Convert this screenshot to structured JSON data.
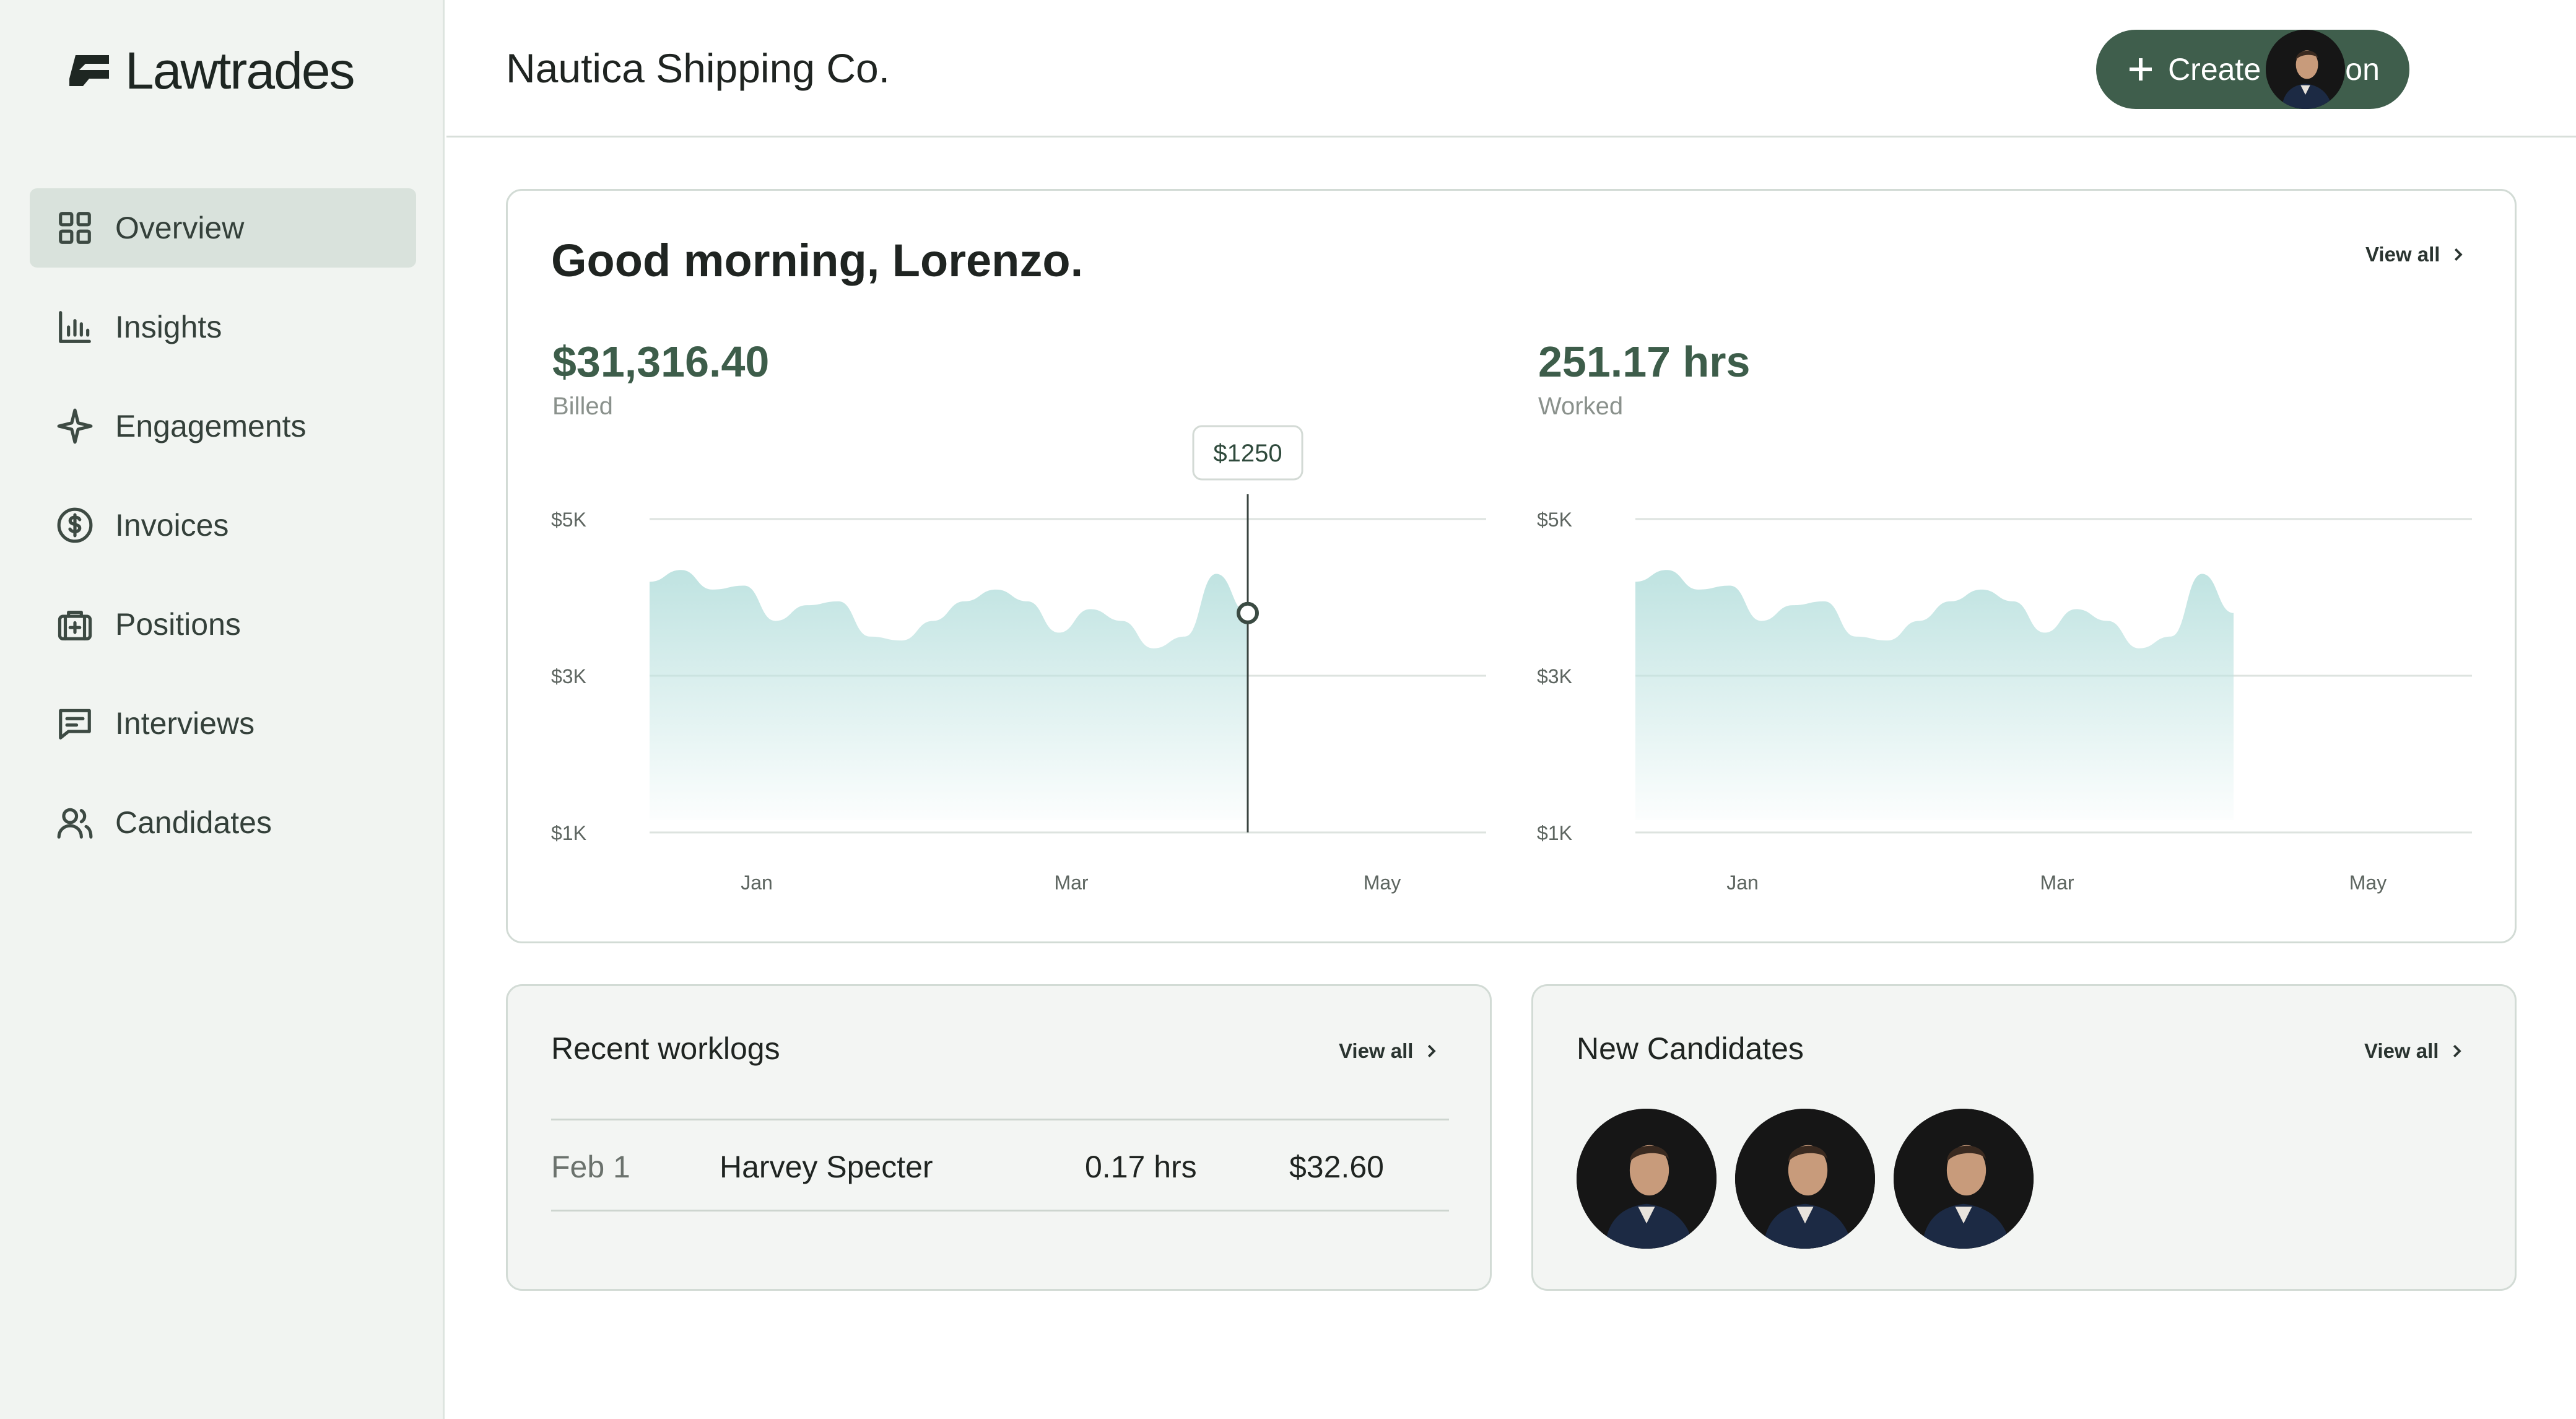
{
  "brand": {
    "name": "Lawtrades"
  },
  "sidebar": {
    "items": [
      {
        "label": "Overview",
        "icon": "grid-icon",
        "active": true
      },
      {
        "label": "Insights",
        "icon": "bar-chart-icon"
      },
      {
        "label": "Engagements",
        "icon": "sparkle-icon"
      },
      {
        "label": "Invoices",
        "icon": "dollar-circle-icon"
      },
      {
        "label": "Positions",
        "icon": "briefcase-icon"
      },
      {
        "label": "Interviews",
        "icon": "message-icon"
      },
      {
        "label": "Candidates",
        "icon": "users-icon"
      }
    ]
  },
  "header": {
    "company": "Nautica Shipping Co.",
    "create_label": "Create Position"
  },
  "overview": {
    "greeting": "Good morning, Lorenzo.",
    "view_all": "View all",
    "billed": {
      "value": "$31,316.40",
      "label": "Billed"
    },
    "worked": {
      "value": "251.17 hrs",
      "label": "Worked"
    },
    "tooltip": "$1250"
  },
  "chart_data": [
    {
      "type": "area",
      "title": "",
      "y_ticks": [
        "$5K",
        "$3K",
        "$1K"
      ],
      "x_ticks": [
        "Jan",
        "Mar",
        "May"
      ],
      "ylim": [
        1000,
        5000
      ],
      "y": [
        4200,
        4350,
        4100,
        4150,
        3700,
        3900,
        3950,
        3500,
        3450,
        3700,
        3950,
        4100,
        3950,
        3550,
        3850,
        3700,
        3350,
        3500,
        4300,
        3800
      ],
      "highlight": {
        "label": "$1250"
      },
      "color": "#bfe3e1"
    },
    {
      "type": "area",
      "title": "",
      "y_ticks": [
        "$5K",
        "$3K",
        "$1K"
      ],
      "x_ticks": [
        "Jan",
        "Mar",
        "May"
      ],
      "ylim": [
        1000,
        5000
      ],
      "y": [
        4200,
        4350,
        4100,
        4150,
        3700,
        3900,
        3950,
        3500,
        3450,
        3700,
        3950,
        4100,
        3950,
        3550,
        3850,
        3700,
        3350,
        3500,
        4300,
        3800
      ],
      "color": "#bfe3e1"
    }
  ],
  "worklogs": {
    "title": "Recent worklogs",
    "view_all": "View all",
    "rows": [
      {
        "date": "Feb 1",
        "name": "Harvey Specter",
        "hours": "0.17 hrs",
        "amount": "$32.60"
      }
    ]
  },
  "candidates": {
    "title": "New Candidates",
    "view_all": "View all",
    "count_shown": 3
  }
}
